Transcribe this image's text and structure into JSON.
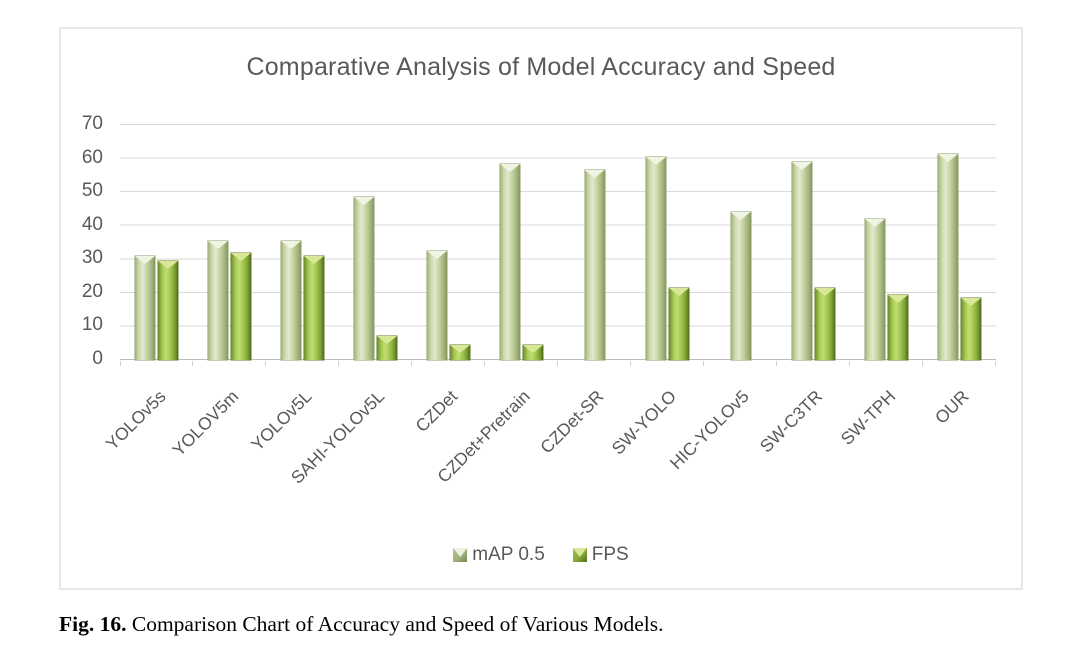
{
  "figure": {
    "caption_label": "Fig. 16.",
    "caption_text": " Comparison Chart of Accuracy and Speed of Various Models."
  },
  "chart_data": {
    "type": "bar",
    "title": "Comparative Analysis of Model Accuracy and Speed",
    "categories": [
      "YOLOv5s",
      "YOLOV5m",
      "YOLOv5L",
      "SAHI-YOLOv5L",
      "CZDet",
      "CZDet+Pretrain",
      "CZDet-SR",
      "SW-YOLO",
      "HIC-YOLOv5",
      "SW-C3TR",
      "SW-TPH",
      "OUR"
    ],
    "series": [
      {
        "name": "mAP 0.5",
        "values": [
          31,
          35.5,
          35.5,
          48.5,
          32.5,
          58.5,
          56.5,
          60.5,
          44,
          59,
          42,
          61.5
        ],
        "color": "#c6d3a3"
      },
      {
        "name": "FPS",
        "values": [
          29.5,
          32,
          31,
          7,
          4.5,
          4.5,
          0,
          21.5,
          0,
          21.5,
          19.5,
          18.5
        ],
        "color": "#9cc24a"
      }
    ],
    "xlabel": "",
    "ylabel": "",
    "ylim": [
      0,
      70
    ],
    "yticks": [
      70,
      60,
      50,
      40,
      30,
      20,
      10,
      0
    ],
    "grid": "horizontal",
    "legend_position": "bottom",
    "colors": {
      "title_text": "#58595b",
      "axis_text": "#595959",
      "gridline": "#d9d9d9",
      "axis_line": "#bdbdbd",
      "chart_border": "#e7e7e7",
      "map_bar_light": "#e3eacf",
      "map_bar_mid": "#c6d3a3",
      "map_bar_dark": "#869960",
      "fps_bar_light": "#c2dd74",
      "fps_bar_mid": "#9cc24a",
      "fps_bar_dark": "#546d1d"
    }
  }
}
